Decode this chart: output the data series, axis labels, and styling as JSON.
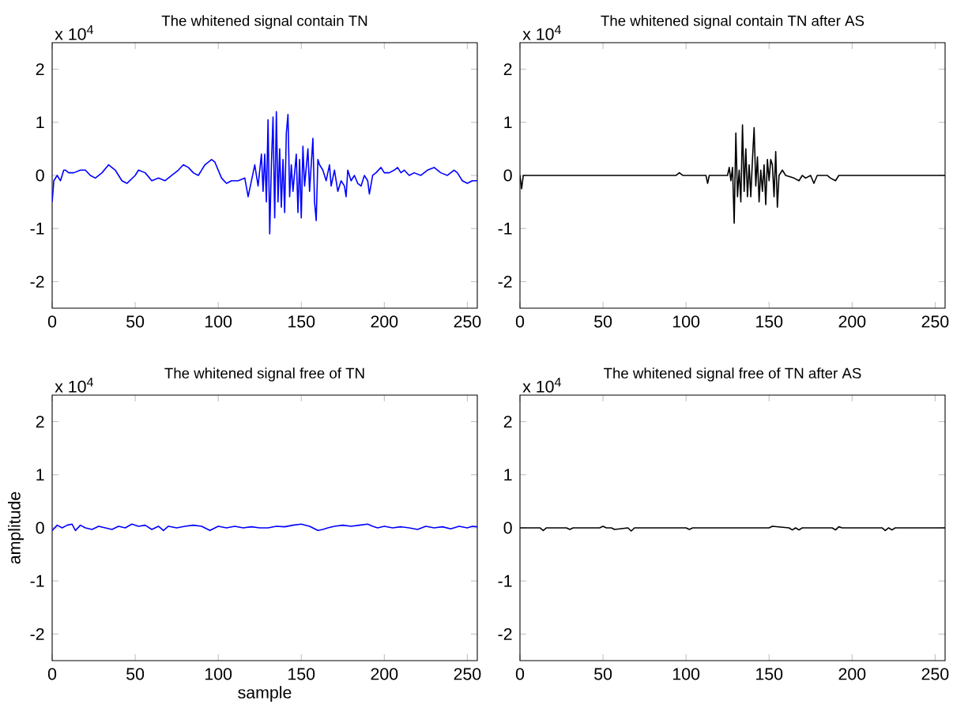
{
  "chart_data": [
    {
      "type": "line",
      "title": "The whitened signal contain TN",
      "annotations": [
        "x 10$^{4}$"
      ],
      "xlim": [
        0,
        256
      ],
      "ylim": [
        -2.5,
        2.5
      ],
      "xticks": [
        0,
        50,
        100,
        150,
        200,
        250
      ],
      "yticks": [
        -2,
        -1,
        0,
        1,
        2
      ],
      "series": [
        {
          "color": "#0000ff",
          "x": [
            0,
            1,
            3,
            5,
            7,
            8,
            10,
            13,
            17,
            20,
            23,
            26,
            30,
            34,
            38,
            42,
            45,
            50,
            52,
            56,
            60,
            64,
            68,
            72,
            76,
            79,
            82,
            85,
            88,
            92,
            96,
            98,
            102,
            105,
            108,
            112,
            116,
            118,
            120,
            122,
            124,
            126,
            127,
            128,
            129,
            130,
            131,
            132,
            133,
            134,
            135,
            136,
            137,
            138,
            139,
            140,
            141,
            142,
            143,
            144,
            145,
            147,
            148,
            149,
            150,
            151,
            152,
            154,
            155,
            157,
            158,
            159,
            160,
            161,
            163,
            165,
            167,
            168,
            170,
            172,
            174,
            176,
            177,
            178,
            180,
            182,
            184,
            186,
            188,
            190,
            191,
            193,
            195,
            198,
            200,
            203,
            206,
            208,
            210,
            212,
            215,
            218,
            222,
            226,
            230,
            234,
            238,
            242,
            244,
            247,
            250,
            253,
            256
          ],
          "values": [
            -0.5,
            -0.1,
            0,
            -0.1,
            0.1,
            0.1,
            0.05,
            0.05,
            0.1,
            0.1,
            0,
            -0.05,
            0.05,
            0.2,
            0.1,
            -0.1,
            -0.15,
            0,
            0.1,
            0.05,
            -0.1,
            -0.05,
            -0.1,
            0,
            0.1,
            0.2,
            0.15,
            0.05,
            0,
            0.2,
            0.3,
            0.25,
            -0.05,
            -0.15,
            -0.1,
            -0.1,
            -0.05,
            -0.4,
            -0.1,
            0.2,
            -0.2,
            0.4,
            -0.3,
            0.4,
            -0.5,
            1.05,
            -1.1,
            0.2,
            1.1,
            -0.8,
            1.2,
            -0.5,
            0.5,
            -0.6,
            0.3,
            -0.7,
            0.8,
            1.15,
            -0.4,
            0.2,
            -0.3,
            0.4,
            -0.7,
            0.3,
            -0.8,
            0.55,
            -0.2,
            0.5,
            -0.3,
            0.7,
            -0.5,
            -0.85,
            0.3,
            0.2,
            0.1,
            -0.1,
            0.2,
            -0.2,
            0.1,
            -0.3,
            -0.1,
            -0.2,
            -0.4,
            0.1,
            -0.1,
            0,
            -0.15,
            -0.2,
            0,
            -0.1,
            -0.35,
            0,
            0.05,
            0.15,
            0.05,
            0.05,
            0.1,
            0.15,
            0.05,
            0.1,
            0,
            0.05,
            0,
            0.1,
            0.15,
            0.05,
            0,
            0.1,
            0.05,
            -0.1,
            -0.15,
            -0.1,
            -0.1
          ]
        }
      ]
    },
    {
      "type": "line",
      "title": "The whitened signal contain TN after AS",
      "annotations": [
        "x 10$^{4}$"
      ],
      "xlim": [
        0,
        256
      ],
      "ylim": [
        -2.5,
        2.5
      ],
      "xticks": [
        0,
        50,
        100,
        150,
        200,
        250
      ],
      "yticks": [
        -2,
        -1,
        0,
        1,
        2
      ],
      "series": [
        {
          "color": "#000000",
          "x": [
            0,
            1,
            2,
            94,
            96,
            98,
            112,
            113,
            114,
            125,
            126,
            127,
            128,
            129,
            130,
            131,
            132,
            133,
            134,
            135,
            136,
            137,
            138,
            139,
            140,
            141,
            142,
            143,
            144,
            145,
            146,
            147,
            148,
            149,
            150,
            151,
            152,
            153,
            154,
            155,
            156,
            158,
            160,
            165,
            168,
            170,
            172,
            175,
            177,
            179,
            185,
            187,
            190,
            192,
            256
          ],
          "values": [
            0,
            -0.25,
            0,
            0,
            0.05,
            0,
            0,
            -0.15,
            0,
            0,
            0.15,
            -0.1,
            0.15,
            -0.9,
            0.8,
            -0.4,
            0.1,
            -0.5,
            0.95,
            -0.3,
            0.5,
            -0.4,
            0.2,
            -0.4,
            0.3,
            0.9,
            -0.2,
            0.35,
            -0.5,
            0.1,
            -0.3,
            0.2,
            -0.55,
            0.3,
            -0.1,
            0.3,
            0.2,
            -0.4,
            0.45,
            -0.6,
            0,
            0.1,
            0,
            -0.05,
            -0.1,
            0,
            -0.05,
            0,
            -0.15,
            0,
            0,
            -0.05,
            -0.1,
            0,
            0
          ]
        }
      ]
    },
    {
      "type": "line",
      "title": "The whitened signal free of TN",
      "xlabel": "sample",
      "ylabel": "amplitude",
      "annotations": [
        "x 10$^{4}$"
      ],
      "xlim": [
        0,
        256
      ],
      "ylim": [
        -2.5,
        2.5
      ],
      "xticks": [
        0,
        50,
        100,
        150,
        200,
        250
      ],
      "yticks": [
        -2,
        -1,
        0,
        1,
        2
      ],
      "series": [
        {
          "color": "#0000ff",
          "x": [
            0,
            3,
            6,
            9,
            12,
            14,
            17,
            20,
            24,
            28,
            32,
            36,
            40,
            44,
            48,
            52,
            56,
            60,
            64,
            67,
            70,
            75,
            80,
            85,
            90,
            95,
            100,
            105,
            110,
            115,
            120,
            125,
            130,
            135,
            140,
            145,
            150,
            155,
            160,
            163,
            166,
            170,
            175,
            180,
            185,
            190,
            193,
            196,
            200,
            205,
            210,
            215,
            220,
            225,
            230,
            235,
            240,
            245,
            250,
            253,
            256
          ],
          "values": [
            -0.05,
            0.05,
            0,
            0.05,
            0.07,
            -0.05,
            0.05,
            0,
            -0.03,
            0.03,
            0,
            -0.03,
            0.03,
            0,
            0.07,
            0.03,
            0.05,
            -0.03,
            0.03,
            -0.05,
            0.03,
            0,
            0.03,
            0.05,
            0.03,
            -0.05,
            0.03,
            0,
            0.03,
            0,
            0.02,
            0,
            0,
            0.03,
            0.02,
            0.05,
            0.07,
            0.03,
            -0.05,
            -0.03,
            0,
            0.03,
            0.05,
            0.03,
            0.05,
            0.07,
            0.03,
            0,
            0.03,
            0,
            0.02,
            0,
            -0.03,
            0.03,
            0,
            0.02,
            -0.02,
            0.03,
            0,
            0.03,
            0.02
          ]
        }
      ]
    },
    {
      "type": "line",
      "title": "The whitened signal free of TN after AS",
      "annotations": [
        "x 10$^{4}$"
      ],
      "xlim": [
        0,
        256
      ],
      "ylim": [
        -2.5,
        2.5
      ],
      "xticks": [
        0,
        50,
        100,
        150,
        200,
        250
      ],
      "yticks": [
        -2,
        -1,
        0,
        1,
        2
      ],
      "series": [
        {
          "color": "#000000",
          "x": [
            0,
            12,
            14,
            16,
            28,
            30,
            32,
            48,
            50,
            52,
            55,
            57,
            65,
            67,
            69,
            100,
            102,
            104,
            150,
            152,
            162,
            164,
            166,
            168,
            170,
            188,
            190,
            192,
            194,
            218,
            220,
            222,
            224,
            226,
            228,
            256
          ],
          "values": [
            0,
            0,
            -0.05,
            0,
            0,
            -0.03,
            0,
            0,
            0.03,
            0,
            0,
            -0.03,
            0,
            -0.06,
            0,
            0,
            -0.03,
            0,
            0,
            0.03,
            0,
            -0.04,
            0,
            -0.04,
            0,
            0,
            -0.04,
            0.02,
            0,
            0,
            -0.05,
            0,
            -0.04,
            0,
            0,
            0
          ]
        }
      ]
    }
  ]
}
